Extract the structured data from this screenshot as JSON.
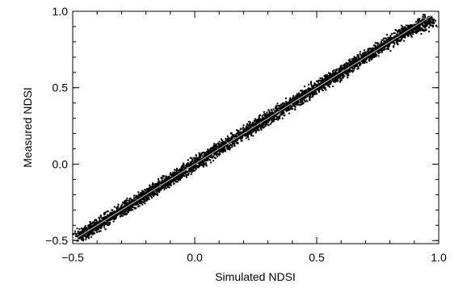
{
  "chart_data": {
    "type": "scatter",
    "xlabel": "Simulated NDSI",
    "ylabel": "Measured NDSI",
    "xlim": [
      -0.5,
      1.0
    ],
    "ylim": [
      -0.52,
      1.0
    ],
    "x_ticks": [
      -0.5,
      0.0,
      0.5,
      1.0
    ],
    "y_ticks": [
      -0.5,
      0.0,
      0.5,
      1.0
    ],
    "x_tick_labels": [
      "−0.5",
      "0.0",
      "0.5",
      "1.0"
    ],
    "y_tick_labels": [
      "−0.5",
      "0.0",
      "0.5",
      "1.0"
    ],
    "grid": false,
    "series": [
      {
        "marker_color": "#000000",
        "x": [
          -0.48,
          -0.45,
          -0.42,
          -0.4,
          -0.38,
          -0.35,
          -0.32,
          -0.3,
          -0.28,
          -0.25,
          -0.22,
          -0.2,
          -0.18,
          -0.15,
          -0.12,
          -0.1,
          -0.08,
          -0.05,
          -0.02,
          0.0,
          0.02,
          0.05,
          0.08,
          0.1,
          0.12,
          0.15,
          0.18,
          0.2,
          0.22,
          0.25,
          0.28,
          0.3,
          0.32,
          0.35,
          0.38,
          0.4,
          0.42,
          0.45,
          0.48,
          0.5,
          0.52,
          0.55,
          0.58,
          0.6,
          0.62,
          0.65,
          0.68,
          0.7,
          0.72,
          0.75,
          0.78,
          0.8,
          0.82,
          0.85,
          0.88,
          0.9,
          0.92,
          0.94,
          0.96,
          0.97
        ],
        "y": [
          -0.5,
          -0.45,
          -0.43,
          -0.39,
          -0.38,
          -0.34,
          -0.33,
          -0.29,
          -0.28,
          -0.24,
          -0.23,
          -0.19,
          -0.18,
          -0.14,
          -0.13,
          -0.09,
          -0.08,
          -0.04,
          -0.03,
          0.0,
          0.03,
          0.05,
          0.09,
          0.1,
          0.13,
          0.15,
          0.19,
          0.2,
          0.23,
          0.25,
          0.29,
          0.3,
          0.33,
          0.35,
          0.39,
          0.4,
          0.43,
          0.45,
          0.49,
          0.5,
          0.53,
          0.55,
          0.59,
          0.6,
          0.63,
          0.65,
          0.69,
          0.7,
          0.73,
          0.75,
          0.79,
          0.8,
          0.83,
          0.85,
          0.88,
          0.9,
          0.92,
          0.93,
          0.95,
          0.96
        ]
      },
      {
        "line_color": "#cccccc",
        "x": [
          -0.5,
          1.0
        ],
        "y": [
          -0.5,
          1.0
        ]
      }
    ]
  }
}
